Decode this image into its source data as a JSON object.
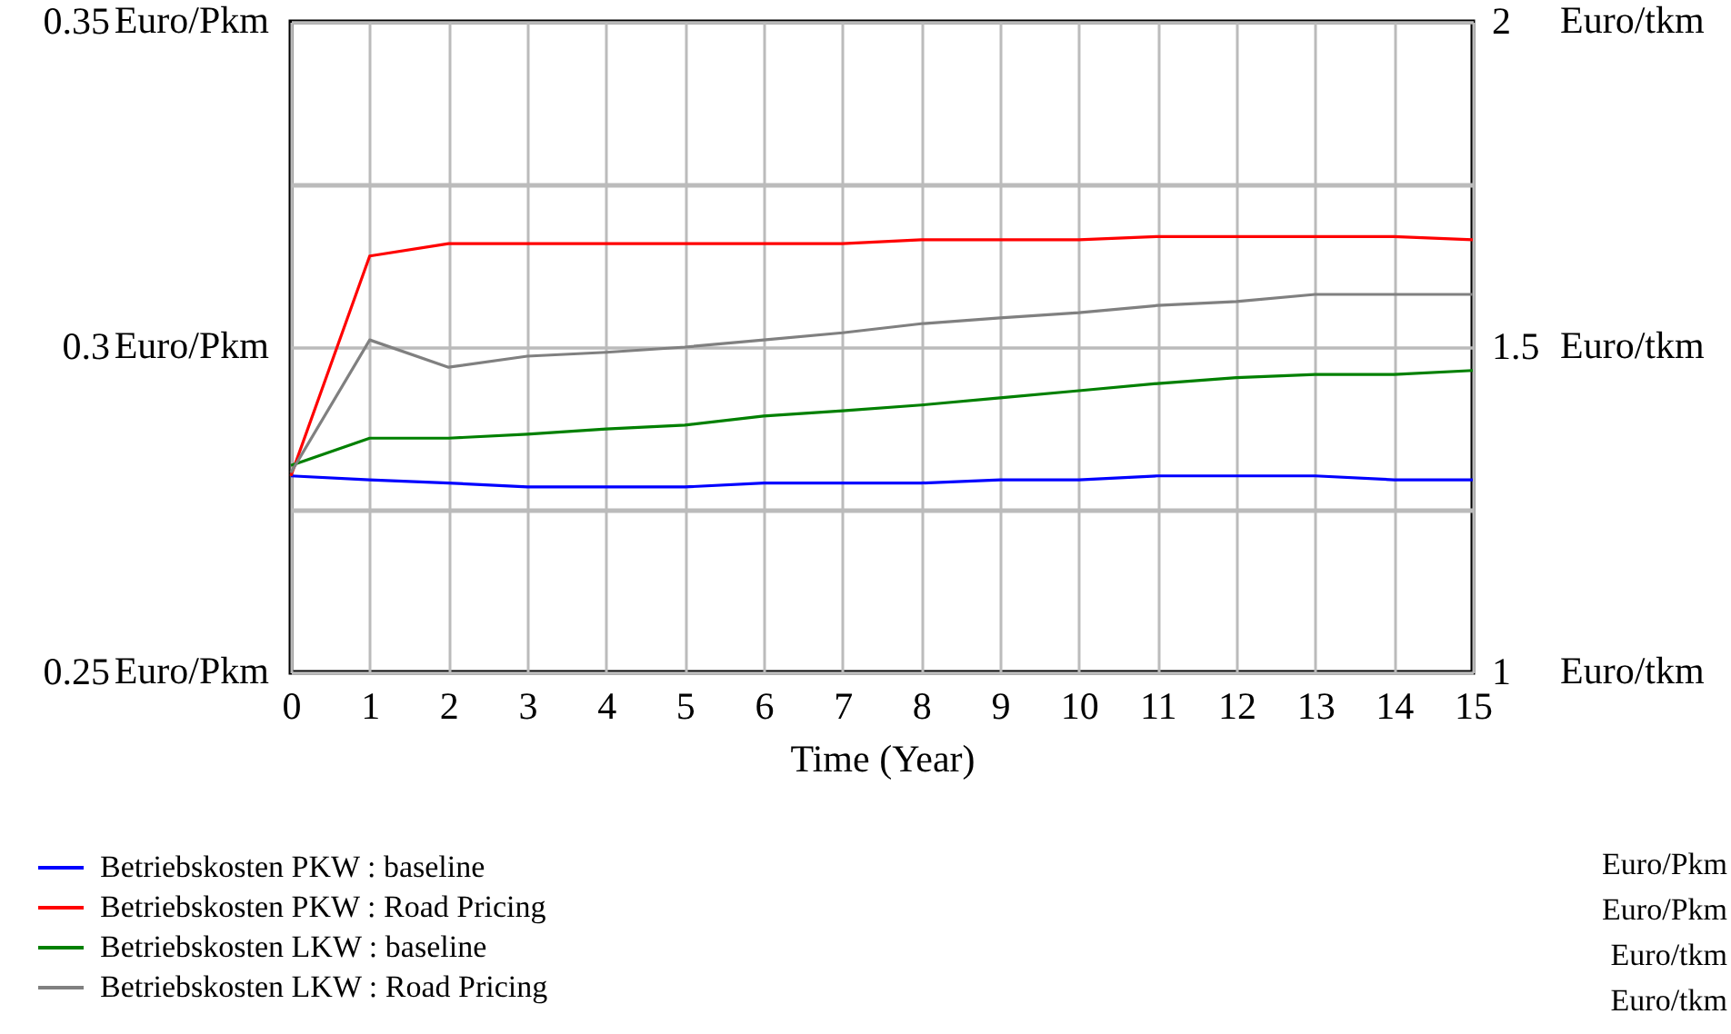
{
  "chart_data": {
    "type": "line",
    "xlabel": "Time (Year)",
    "ylabel": "Euro/Pkm",
    "y2label": "Euro/tkm",
    "x": [
      0,
      1,
      2,
      3,
      4,
      5,
      6,
      7,
      8,
      9,
      10,
      11,
      12,
      13,
      14,
      15
    ],
    "xlim": [
      0,
      15
    ],
    "xticks": [
      0,
      1,
      2,
      3,
      4,
      5,
      6,
      7,
      8,
      9,
      10,
      11,
      12,
      13,
      14,
      15
    ],
    "ylim": [
      0.25,
      0.35
    ],
    "yticks": [
      0.25,
      {
        "value": 0.275,
        "label": null
      },
      0.3,
      {
        "value": 0.325,
        "label": null
      },
      0.35
    ],
    "y2lim": [
      1,
      2
    ],
    "y2ticks": [
      1,
      {
        "value": 1.25,
        "label": null
      },
      1.5,
      {
        "value": 1.75,
        "label": null
      },
      2
    ],
    "grid": true,
    "legend": "bottom",
    "series": [
      {
        "name": "Betriebskosten PKW : baseline",
        "color": "#0000ff",
        "values": [
          0.2802,
          0.2796,
          0.2791,
          0.2785,
          0.2785,
          0.2785,
          0.2791,
          0.2791,
          0.2791,
          0.2796,
          0.2796,
          0.2802,
          0.2802,
          0.2802,
          0.2796,
          0.2796
        ]
      },
      {
        "name": "Betriebskosten PKW : Road Pricing",
        "color": "#ff0000",
        "values": [
          0.2802,
          0.314,
          0.3159,
          0.3159,
          0.3159,
          0.3159,
          0.3159,
          0.3159,
          0.3165,
          0.3165,
          0.3165,
          0.317,
          0.317,
          0.317,
          0.317,
          0.3165
        ]
      },
      {
        "name": "Betriebskosten LKW : baseline",
        "color": "#008000",
        "axis": "y2",
        "values": [
          1.318,
          1.36,
          1.36,
          1.366,
          1.374,
          1.38,
          1.394,
          1.402,
          1.411,
          1.422,
          1.433,
          1.444,
          1.453,
          1.458,
          1.458,
          1.464
        ]
      },
      {
        "name": "Betriebskosten LKW : Road Pricing",
        "color": "#808080",
        "axis": "y2",
        "values": [
          1.307,
          1.511,
          1.469,
          1.486,
          1.492,
          1.5,
          1.511,
          1.522,
          1.536,
          1.545,
          1.553,
          1.564,
          1.57,
          1.581,
          1.581,
          1.581
        ]
      }
    ]
  }
}
